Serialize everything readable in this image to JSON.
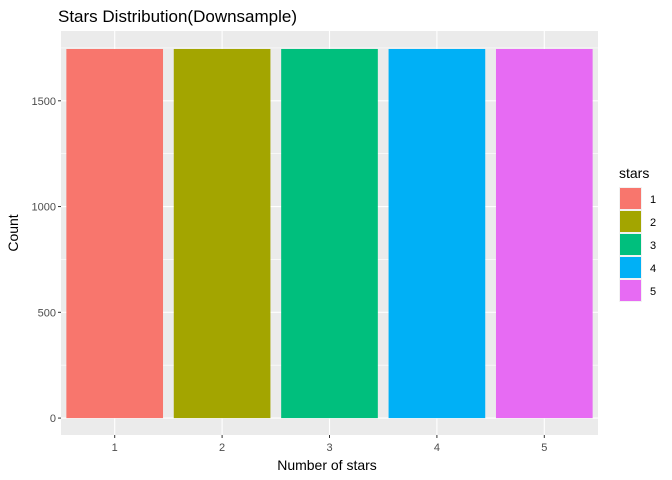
{
  "chart_data": {
    "type": "bar",
    "title": "Stars Distribution(Downsample)",
    "xlabel": "Number of stars",
    "ylabel": "Count",
    "categories": [
      "1",
      "2",
      "3",
      "4",
      "5"
    ],
    "values": [
      1745,
      1745,
      1745,
      1745,
      1745
    ],
    "ylim": [
      -80,
      1830
    ],
    "yticks": [
      0,
      500,
      1000,
      1500
    ],
    "ytick_labels": [
      "0",
      "500",
      "1000",
      "1500"
    ],
    "colors": [
      "#F8766D",
      "#A3A500",
      "#00BF7D",
      "#00B0F6",
      "#E76BF3"
    ],
    "grid": true,
    "panel_background": "#EBEBEB",
    "legend": {
      "title": "stars",
      "placement": "right",
      "entries": [
        "1",
        "2",
        "3",
        "4",
        "5"
      ]
    }
  }
}
